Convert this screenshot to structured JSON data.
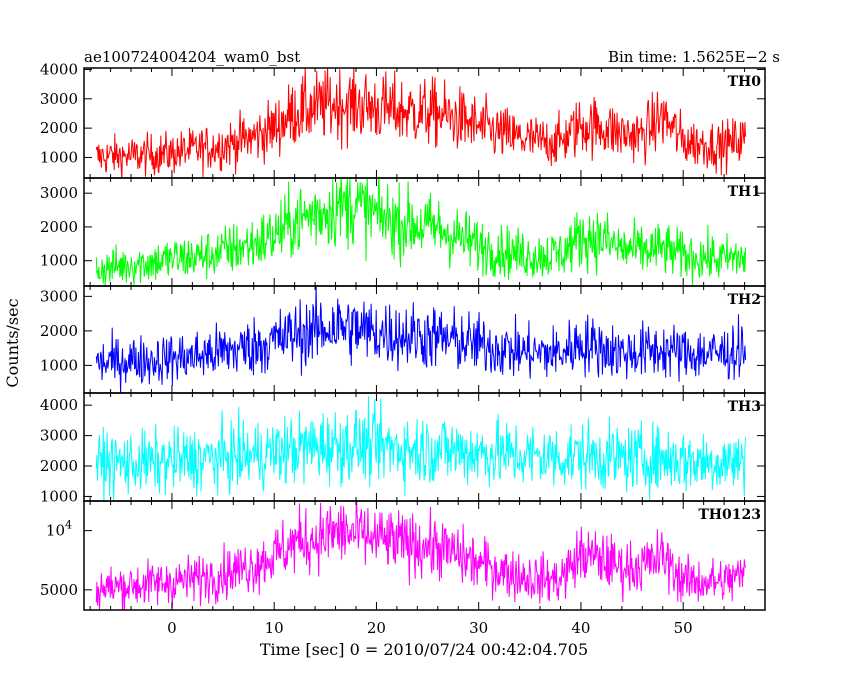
{
  "header": {
    "left_title": "ae100724004204_wam0_bst",
    "right_title": "Bin time: 1.5625E−2 s"
  },
  "axes": {
    "xlabel": "Time [sec] 0 = 2010/07/24 00:42:04.705",
    "ylabel": "Counts/sec"
  },
  "chart_data": [
    {
      "type": "line",
      "name": "TH0",
      "color": "#ff0000",
      "xlim": [
        -8.6,
        58
      ],
      "ylim": [
        300,
        4050
      ],
      "yticks": [
        1000,
        2000,
        3000,
        4000
      ],
      "x": [
        -8,
        -6,
        -4,
        -2,
        0,
        2,
        4,
        6,
        8,
        10,
        12,
        14,
        16,
        18,
        20,
        22,
        24,
        26,
        28,
        30,
        32,
        34,
        36,
        38,
        40,
        42,
        44,
        46,
        48,
        50,
        52,
        54,
        56
      ],
      "y": [
        1000,
        1050,
        1050,
        1100,
        1150,
        1250,
        1350,
        1500,
        1700,
        2000,
        2550,
        2700,
        2850,
        2800,
        2700,
        2600,
        2550,
        2500,
        2300,
        2050,
        1850,
        1650,
        1550,
        1550,
        2100,
        2050,
        1800,
        1750,
        2400,
        1550,
        1450,
        1400,
        1650
      ]
    },
    {
      "type": "line",
      "name": "TH1",
      "color": "#00ff00",
      "xlim": [
        -8.6,
        58
      ],
      "ylim": [
        250,
        3450
      ],
      "yticks": [
        1000,
        2000,
        3000
      ],
      "x": [
        -8,
        -6,
        -4,
        -2,
        0,
        2,
        4,
        6,
        8,
        10,
        12,
        14,
        16,
        18,
        20,
        22,
        24,
        26,
        28,
        30,
        32,
        34,
        36,
        38,
        40,
        42,
        44,
        46,
        48,
        50,
        52,
        54,
        56
      ],
      "y": [
        700,
        800,
        900,
        950,
        1050,
        1100,
        1200,
        1350,
        1500,
        1750,
        2150,
        2400,
        2600,
        2650,
        2350,
        2150,
        2050,
        1950,
        1700,
        1450,
        1300,
        1200,
        1150,
        1200,
        1700,
        1650,
        1350,
        1300,
        1350,
        1150,
        1100,
        1050,
        1100
      ]
    },
    {
      "type": "line",
      "name": "TH2",
      "color": "#0000ff",
      "xlim": [
        -8.6,
        58
      ],
      "ylim": [
        200,
        3300
      ],
      "yticks": [
        1000,
        2000,
        3000
      ],
      "x": [
        -8,
        -6,
        -4,
        -2,
        0,
        2,
        4,
        6,
        8,
        10,
        12,
        14,
        16,
        18,
        20,
        22,
        24,
        26,
        28,
        30,
        32,
        34,
        36,
        38,
        40,
        42,
        44,
        46,
        48,
        50,
        52,
        54,
        56
      ],
      "y": [
        1050,
        1100,
        1150,
        1150,
        1200,
        1250,
        1350,
        1450,
        1550,
        1700,
        1900,
        2000,
        2150,
        2050,
        1950,
        1900,
        1850,
        1800,
        1700,
        1600,
        1500,
        1400,
        1350,
        1350,
        1650,
        1500,
        1350,
        1400,
        1450,
        1350,
        1350,
        1350,
        1500
      ]
    },
    {
      "type": "line",
      "name": "TH3",
      "color": "#00ffff",
      "xlim": [
        -8.6,
        58
      ],
      "ylim": [
        850,
        4400
      ],
      "yticks": [
        1000,
        2000,
        3000,
        4000
      ],
      "x": [
        -8,
        -6,
        -4,
        -2,
        0,
        2,
        4,
        6,
        8,
        10,
        12,
        14,
        16,
        18,
        20,
        22,
        24,
        26,
        28,
        30,
        32,
        34,
        36,
        38,
        40,
        42,
        44,
        46,
        48,
        50,
        52,
        54,
        56
      ],
      "y": [
        2050,
        2100,
        2100,
        2100,
        2150,
        2200,
        2250,
        2300,
        2350,
        2450,
        2550,
        2650,
        2700,
        2700,
        2650,
        2600,
        2550,
        2550,
        2500,
        2450,
        2400,
        2350,
        2300,
        2300,
        2350,
        2300,
        2250,
        2250,
        2250,
        2200,
        2150,
        2150,
        2150
      ]
    },
    {
      "type": "line",
      "name": "TH0123",
      "color": "#ff00ff",
      "xlim": [
        -8.6,
        58
      ],
      "ylim": [
        3300,
        12500
      ],
      "yticks": [
        5000,
        10000
      ],
      "ytick_labels": [
        "5000",
        "10^4"
      ],
      "x": [
        -8,
        -6,
        -4,
        -2,
        0,
        2,
        4,
        6,
        8,
        10,
        12,
        14,
        16,
        18,
        20,
        22,
        24,
        26,
        28,
        30,
        32,
        34,
        36,
        38,
        40,
        42,
        44,
        46,
        48,
        50,
        52,
        54,
        56
      ],
      "y": [
        5000,
        5200,
        5400,
        5500,
        5700,
        5900,
        6200,
        6600,
        7100,
        7900,
        9000,
        9300,
        9900,
        9700,
        9300,
        9000,
        8800,
        8600,
        7900,
        7200,
        6700,
        6200,
        5900,
        5900,
        8000,
        7600,
        6900,
        7000,
        7800,
        5800,
        5700,
        5700,
        6300
      ]
    }
  ],
  "xaxis": {
    "xlim": [
      -8.6,
      58
    ],
    "ticks": [
      0,
      10,
      20,
      30,
      40,
      50
    ],
    "tick_labels": [
      "0",
      "10",
      "20",
      "30",
      "40",
      "50"
    ]
  }
}
